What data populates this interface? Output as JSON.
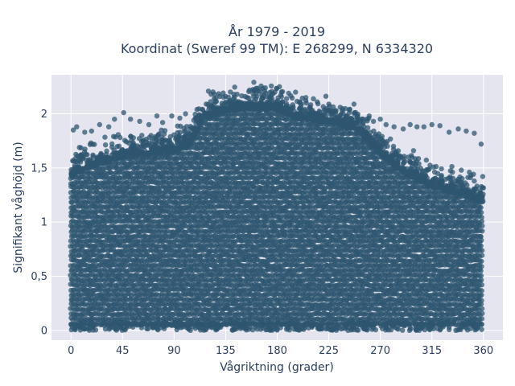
{
  "chart_data": {
    "type": "scatter",
    "title": "År 1979 - 2019",
    "subtitle": "Koordinat (Sweref 99 TM): E 268299, N 6334320",
    "xlabel": "Vågriktning (grader)",
    "ylabel": "Signifikant våghöjd (m)",
    "xlim": [
      -17,
      377
    ],
    "ylim": [
      -0.09,
      2.36
    ],
    "xticks": [
      0,
      45,
      90,
      135,
      180,
      225,
      270,
      315,
      360
    ],
    "xtick_labels": [
      "0",
      "45",
      "90",
      "135",
      "180",
      "225",
      "270",
      "315",
      "360"
    ],
    "yticks": [
      0,
      0.5,
      1,
      1.5,
      2
    ],
    "ytick_labels": [
      "0",
      "0,5",
      "1",
      "1,5",
      "2"
    ],
    "grid": true,
    "colors": {
      "marker": "#2e5570",
      "plot_bg": "#e5e5ef",
      "grid": "#ffffff",
      "text": "#2a3f5f"
    },
    "envelope": {
      "x": [
        0,
        20,
        45,
        70,
        90,
        105,
        115,
        135,
        160,
        180,
        200,
        225,
        250,
        270,
        290,
        315,
        340,
        360
      ],
      "max_height": [
        1.52,
        1.62,
        1.7,
        1.72,
        1.75,
        1.82,
        2.05,
        2.12,
        2.15,
        2.13,
        2.05,
        2.02,
        1.95,
        1.72,
        1.55,
        1.42,
        1.35,
        1.28
      ]
    },
    "outliers": [
      [
        2,
        1.85
      ],
      [
        5,
        1.88
      ],
      [
        12,
        1.83
      ],
      [
        18,
        1.84
      ],
      [
        25,
        1.9
      ],
      [
        33,
        1.88
      ],
      [
        38,
        1.95
      ],
      [
        46,
        2.01
      ],
      [
        52,
        1.95
      ],
      [
        60,
        1.93
      ],
      [
        68,
        1.9
      ],
      [
        75,
        1.98
      ],
      [
        80,
        1.92
      ],
      [
        88,
        1.98
      ],
      [
        95,
        1.96
      ],
      [
        100,
        2.0
      ],
      [
        110,
        2.04
      ],
      [
        118,
        2.09
      ],
      [
        125,
        2.14
      ],
      [
        135,
        2.16
      ],
      [
        145,
        2.18
      ],
      [
        152,
        2.16
      ],
      [
        160,
        2.22
      ],
      [
        165,
        2.21
      ],
      [
        170,
        2.19
      ],
      [
        178,
        2.2
      ],
      [
        182,
        2.25
      ],
      [
        190,
        2.19
      ],
      [
        196,
        2.2
      ],
      [
        205,
        2.15
      ],
      [
        215,
        2.11
      ],
      [
        225,
        2.09
      ],
      [
        235,
        2.06
      ],
      [
        243,
        2.01
      ],
      [
        250,
        1.98
      ],
      [
        258,
        1.95
      ],
      [
        264,
        1.93
      ],
      [
        270,
        1.95
      ],
      [
        275,
        1.9
      ],
      [
        282,
        1.88
      ],
      [
        290,
        1.86
      ],
      [
        296,
        1.9
      ],
      [
        302,
        1.88
      ],
      [
        308,
        1.88
      ],
      [
        315,
        1.9
      ],
      [
        322,
        1.89
      ],
      [
        330,
        1.83
      ],
      [
        338,
        1.86
      ],
      [
        345,
        1.84
      ],
      [
        352,
        1.82
      ],
      [
        358,
        1.72
      ]
    ]
  }
}
